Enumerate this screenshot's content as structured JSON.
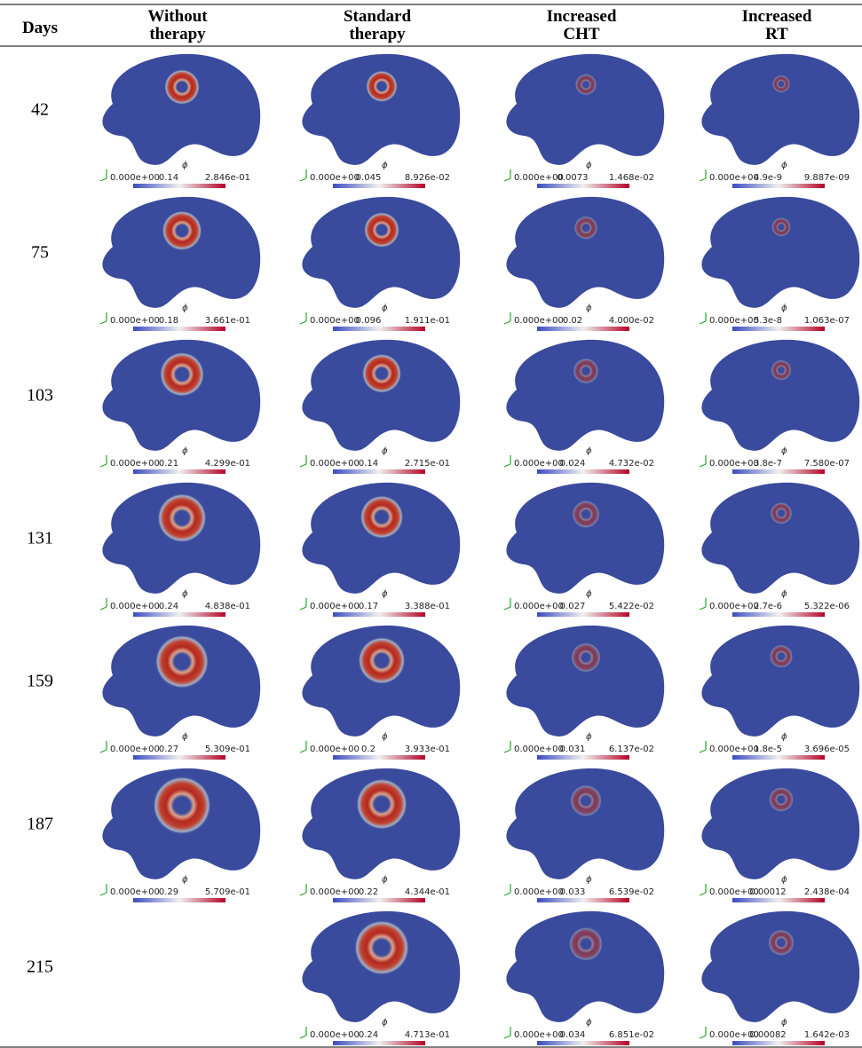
{
  "header": {
    "days": "Days",
    "columns": [
      [
        "Without",
        "therapy"
      ],
      [
        "Standard",
        "therapy"
      ],
      [
        "Increased",
        "CHT"
      ],
      [
        "Increased",
        "RT"
      ]
    ]
  },
  "colorbar_symbol": "ϕ",
  "rows": [
    {
      "day": "42",
      "cells": [
        {
          "min": "0.000e+00",
          "mid": "0.14",
          "max": "2.846e-01"
        },
        {
          "min": "0.000e+00",
          "mid": "0.045",
          "max": "8.926e-02"
        },
        {
          "min": "0.000e+00",
          "mid": "0.0073",
          "max": "1.468e-02"
        },
        {
          "min": "0.000e+00",
          "mid": "4.9e-9",
          "max": "9.887e-09"
        }
      ]
    },
    {
      "day": "75",
      "cells": [
        {
          "min": "0.000e+00",
          "mid": "0.18",
          "max": "3.661e-01"
        },
        {
          "min": "0.000e+00",
          "mid": "0.096",
          "max": "1.911e-01"
        },
        {
          "min": "0.000e+00",
          "mid": "0.02",
          "max": "4.000e-02"
        },
        {
          "min": "0.000e+00",
          "mid": "5.3e-8",
          "max": "1.063e-07"
        }
      ]
    },
    {
      "day": "103",
      "cells": [
        {
          "min": "0.000e+00",
          "mid": "0.21",
          "max": "4.299e-01"
        },
        {
          "min": "0.000e+00",
          "mid": "0.14",
          "max": "2.715e-01"
        },
        {
          "min": "0.000e+00",
          "mid": "0.024",
          "max": "4.732e-02"
        },
        {
          "min": "0.000e+00",
          "mid": "3.8e-7",
          "max": "7.580e-07"
        }
      ]
    },
    {
      "day": "131",
      "cells": [
        {
          "min": "0.000e+00",
          "mid": "0.24",
          "max": "4.838e-01"
        },
        {
          "min": "0.000e+00",
          "mid": "0.17",
          "max": "3.388e-01"
        },
        {
          "min": "0.000e+00",
          "mid": "0.027",
          "max": "5.422e-02"
        },
        {
          "min": "0.000e+00",
          "mid": "2.7e-6",
          "max": "5.322e-06"
        }
      ]
    },
    {
      "day": "159",
      "cells": [
        {
          "min": "0.000e+00",
          "mid": "0.27",
          "max": "5.309e-01"
        },
        {
          "min": "0.000e+00",
          "mid": "0.2",
          "max": "3.933e-01"
        },
        {
          "min": "0.000e+00",
          "mid": "0.031",
          "max": "6.137e-02"
        },
        {
          "min": "0.000e+00",
          "mid": "1.8e-5",
          "max": "3.696e-05"
        }
      ]
    },
    {
      "day": "187",
      "cells": [
        {
          "min": "0.000e+00",
          "mid": "0.29",
          "max": "5.709e-01"
        },
        {
          "min": "0.000e+00",
          "mid": "0.22",
          "max": "4.344e-01"
        },
        {
          "min": "0.000e+00",
          "mid": "0.033",
          "max": "6.539e-02"
        },
        {
          "min": "0.000e+00",
          "mid": "0.00012",
          "max": "2.438e-04"
        }
      ]
    },
    {
      "day": "215",
      "cells": [
        null,
        {
          "min": "0.000e+00",
          "mid": "0.24",
          "max": "4.713e-01"
        },
        {
          "min": "0.000e+00",
          "mid": "0.034",
          "max": "6.851e-02"
        },
        {
          "min": "0.000e+00",
          "mid": "0.00082",
          "max": "1.642e-03"
        }
      ]
    }
  ]
}
